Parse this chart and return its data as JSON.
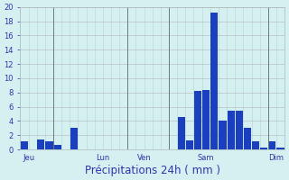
{
  "title": "Précipitations 24h ( mm )",
  "background_color": "#d4f0f0",
  "bar_color": "#1a3fbf",
  "grid_color": "#b0b8b8",
  "dark_line_color": "#707878",
  "ylim": [
    0,
    20
  ],
  "yticks": [
    0,
    2,
    4,
    6,
    8,
    10,
    12,
    14,
    16,
    18,
    20
  ],
  "bar_values": [
    1.1,
    0,
    1.4,
    1.1,
    0.7,
    0,
    3.0,
    0,
    0,
    0,
    0,
    0,
    0,
    0,
    0,
    0,
    0,
    0,
    0,
    4.6,
    1.3,
    8.2,
    8.3,
    19.2,
    4.1,
    5.5,
    5.5,
    3.0,
    1.1,
    0.3,
    1.1,
    0.3
  ],
  "num_bars": 32,
  "day_labels": [
    "Jeu",
    "Lun",
    "Ven",
    "Sam",
    "Dim"
  ],
  "day_tick_positions": [
    0.5,
    9.5,
    14.5,
    22.0,
    30.5
  ],
  "day_vline_positions": [
    3.5,
    12.5,
    17.5,
    29.5
  ],
  "label_color": "#3333aa",
  "tick_fontsize": 6,
  "label_fontsize": 8.5
}
